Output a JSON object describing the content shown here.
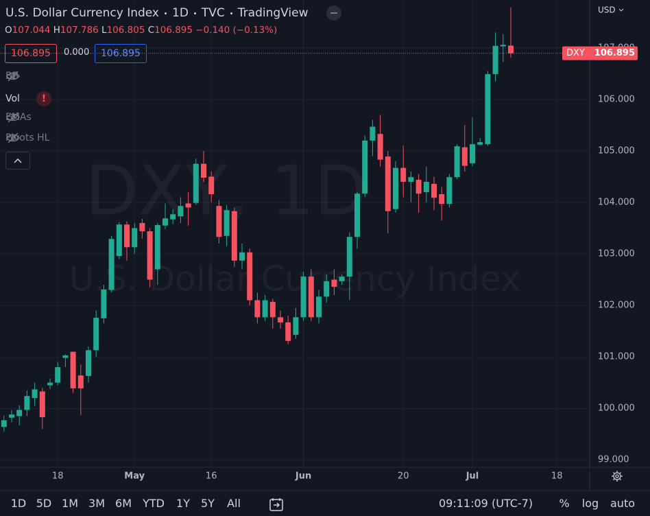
{
  "header": {
    "title": "U.S. Dollar Currency Index",
    "interval": "1D",
    "exchange": "TVC",
    "source": "TradingView",
    "o_label": "O",
    "h_label": "H",
    "l_label": "L",
    "c_label": "C",
    "change": "−0.140 (−0.13%)",
    "volume_value": "0.000"
  },
  "indicators": [
    "BB",
    "Vol",
    "EMAs",
    "Pivots HL"
  ],
  "watermark": {
    "symbol": "DXY, 1D",
    "name": "U.S. Dollar Currency Index"
  },
  "toolbar": {
    "ranges": [
      "1D",
      "5D",
      "1M",
      "3M",
      "6M",
      "YTD",
      "1Y",
      "5Y",
      "All"
    ],
    "time": "09:11:09 (UTC-7)",
    "options": [
      "%",
      "log",
      "auto"
    ]
  },
  "chart_data": {
    "type": "candlestick",
    "currency": "USD",
    "symbol_label": "DXY",
    "up_color": "#22ab94",
    "down_color": "#f7525f",
    "grid": true,
    "categories": [
      null,
      null,
      null,
      null,
      null,
      null,
      null,
      "18",
      null,
      null,
      null,
      null,
      null,
      null,
      null,
      null,
      null,
      "May",
      null,
      null,
      null,
      null,
      null,
      null,
      null,
      null,
      null,
      "16",
      null,
      null,
      null,
      null,
      null,
      null,
      null,
      null,
      null,
      null,
      null,
      "Jun",
      null,
      null,
      null,
      null,
      null,
      null,
      null,
      null,
      null,
      null,
      null,
      null,
      "20",
      null,
      null,
      null,
      null,
      null,
      null,
      null,
      null,
      "Jul",
      null,
      null,
      null,
      null,
      null,
      null,
      null,
      null,
      null,
      null,
      "18",
      null,
      null,
      null,
      null
    ],
    "open": [
      99.64,
      99.82,
      99.85,
      99.97,
      100.2,
      100.33,
      100.45,
      100.5,
      100.98,
      101.1,
      100.64,
      100.63,
      101.13,
      101.75,
      102.3,
      102.96,
      103.57,
      103.13,
      103.6,
      103.44,
      102.7,
      103.55,
      103.67,
      103.73,
      103.98,
      103.99,
      104.75,
      104.5,
      103.93,
      103.35,
      103.83,
      102.87,
      103.03,
      102.1,
      101.77,
      102.07,
      101.77,
      101.67,
      101.43,
      101.77,
      102.56,
      101.77,
      102.17,
      102.5,
      102.47,
      102.56,
      103.33,
      104.17,
      105.2,
      105.33,
      104.89,
      103.87,
      104.67,
      104.4,
      104.44,
      104.2,
      104.36,
      104.16,
      103.97,
      104.49,
      105.07,
      104.76,
      105.12,
      105.13,
      106.49,
      107.03,
      107.044,
      null,
      null,
      null,
      null,
      null,
      null,
      null,
      null,
      null,
      null
    ],
    "high": [
      99.86,
      99.97,
      100.06,
      100.35,
      100.5,
      100.4,
      100.58,
      100.9,
      101.05,
      101.1,
      100.85,
      101.2,
      101.9,
      102.4,
      103.35,
      103.62,
      103.63,
      103.6,
      103.68,
      103.5,
      103.6,
      103.98,
      103.87,
      104.1,
      104.2,
      104.85,
      105.0,
      104.6,
      104.05,
      103.95,
      103.9,
      103.2,
      103.1,
      102.25,
      102.2,
      102.13,
      101.9,
      101.8,
      101.95,
      102.65,
      102.7,
      102.3,
      102.6,
      102.7,
      102.6,
      103.42,
      104.2,
      105.3,
      105.6,
      105.7,
      105.0,
      104.8,
      105.1,
      104.6,
      104.55,
      104.7,
      104.5,
      104.3,
      104.55,
      105.13,
      105.5,
      105.65,
      105.25,
      106.55,
      107.3,
      107.27,
      107.786,
      null,
      null,
      null,
      null,
      null,
      null,
      null,
      null,
      null,
      null
    ],
    "low": [
      99.55,
      99.73,
      99.67,
      99.85,
      100.05,
      99.6,
      100.37,
      100.45,
      100.8,
      100.3,
      99.87,
      100.5,
      101.0,
      101.65,
      102.25,
      102.9,
      102.87,
      103.0,
      103.3,
      102.35,
      102.4,
      103.48,
      103.58,
      103.6,
      103.55,
      103.95,
      104.4,
      104.0,
      103.2,
      103.15,
      102.75,
      102.7,
      102.0,
      101.65,
      101.7,
      101.55,
      101.55,
      101.25,
      101.35,
      101.7,
      101.7,
      101.65,
      102.05,
      102.2,
      102.4,
      102.1,
      103.1,
      104.1,
      104.9,
      104.7,
      103.4,
      103.8,
      104.1,
      104.0,
      103.8,
      104.0,
      103.85,
      103.65,
      103.9,
      104.45,
      104.6,
      104.7,
      105.1,
      105.1,
      106.35,
      106.73,
      106.805,
      null,
      null,
      null,
      null,
      null,
      null,
      null,
      null,
      null,
      null
    ],
    "close": [
      99.77,
      99.88,
      99.97,
      100.24,
      100.37,
      99.83,
      100.5,
      100.8,
      101.03,
      100.39,
      100.39,
      101.13,
      101.76,
      102.31,
      103.29,
      103.57,
      103.13,
      103.5,
      103.44,
      102.5,
      103.56,
      103.69,
      103.77,
      103.93,
      103.9,
      104.75,
      104.48,
      104.16,
      103.33,
      103.85,
      102.87,
      103.03,
      102.1,
      101.77,
      102.1,
      101.77,
      101.67,
      101.31,
      101.77,
      102.56,
      101.77,
      102.17,
      102.47,
      102.36,
      102.56,
      103.33,
      104.17,
      105.2,
      105.47,
      104.83,
      103.83,
      104.67,
      104.4,
      104.49,
      104.17,
      104.4,
      104.09,
      103.97,
      104.49,
      105.09,
      104.71,
      105.13,
      105.17,
      106.49,
      107.04,
      107.06,
      106.895,
      null,
      null,
      null,
      null,
      null,
      null,
      null,
      null,
      null,
      null
    ],
    "ylim": [
      98.87,
      107.93
    ],
    "yticks": [
      {
        "value": 99,
        "label": "99.000"
      },
      {
        "value": 100,
        "label": "100.000"
      },
      {
        "value": 101,
        "label": "101.000"
      },
      {
        "value": 102,
        "label": "102.000"
      },
      {
        "value": 103,
        "label": "103.000"
      },
      {
        "value": 104,
        "label": "104.000"
      },
      {
        "value": 105,
        "label": "105.000"
      },
      {
        "value": 106,
        "label": "106.000"
      },
      {
        "value": 107,
        "label": "107.000"
      }
    ]
  }
}
